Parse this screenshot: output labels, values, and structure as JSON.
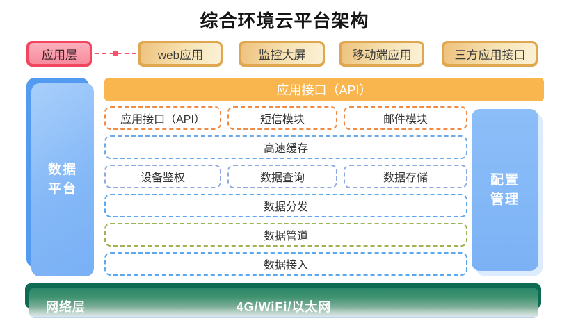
{
  "title": "综合环境云平台架构",
  "application_layer": {
    "label": "应用层",
    "apps": [
      {
        "label": "web应用"
      },
      {
        "label": "监控大屏"
      },
      {
        "label": "移动端应用"
      },
      {
        "label": "三方应用接口"
      }
    ]
  },
  "api_bar": {
    "label": "应用接口（API）"
  },
  "data_platform": {
    "line1": "数据",
    "line2": "平台"
  },
  "config_management": {
    "line1": "配置",
    "line2": "管理"
  },
  "service_rows": {
    "row1": [
      {
        "label": "应用接口（API）"
      },
      {
        "label": "短信模块"
      },
      {
        "label": "邮件模块"
      }
    ],
    "row2": {
      "label": "高速缓存"
    },
    "row3": [
      {
        "label": "设备鉴权"
      },
      {
        "label": "数据查询"
      },
      {
        "label": "数据存储"
      }
    ],
    "row4": {
      "label": "数据分发"
    },
    "row5": {
      "label": "数据管道"
    },
    "row6": {
      "label": "数据接入"
    }
  },
  "network_layer": {
    "label": "网络层",
    "value": "4G/WiFi/以太网"
  },
  "colors": {
    "app_layer_accent": "#f2455f",
    "app_box_gold": "#dfa850",
    "api_bar_orange": "#f9b54e",
    "dashed_orange": "#ef8b45",
    "dashed_blue": "#6ca9e8",
    "dashed_blue_soft": "#8fa9e2",
    "dashed_sky": "#5ba8ef",
    "dashed_olive": "#9fb254",
    "column_blue": "#7db4f6",
    "network_green": "#0e6b53"
  }
}
